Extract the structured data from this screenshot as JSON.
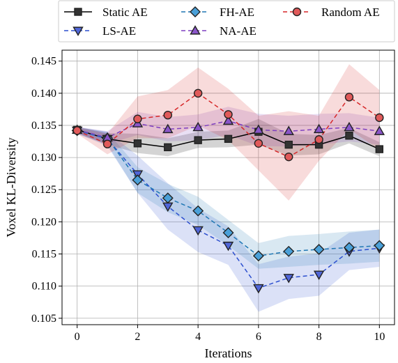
{
  "chart_data": {
    "type": "line",
    "title": "",
    "xlabel": "Iterations",
    "ylabel": "Voxel KL-Diversity",
    "xlim": [
      -0.5,
      10.5
    ],
    "ylim": [
      0.104,
      0.1467
    ],
    "xticks": [
      0,
      2,
      4,
      6,
      8,
      10
    ],
    "yticks": [
      0.105,
      0.11,
      0.115,
      0.12,
      0.125,
      0.13,
      0.135,
      0.14,
      0.145
    ],
    "ytick_labels": [
      "0.105",
      "0.110",
      "0.115",
      "0.120",
      "0.125",
      "0.130",
      "0.135",
      "0.140",
      "0.145"
    ],
    "grid": true,
    "legend_position": "top",
    "x": [
      0,
      1,
      2,
      3,
      4,
      5,
      6,
      7,
      8,
      9,
      10
    ],
    "series": [
      {
        "name": "Static AE",
        "color": "#000000",
        "marker": "square",
        "linestyle": "solid",
        "values": [
          0.1343,
          0.1329,
          0.1322,
          0.1316,
          0.1327,
          0.1329,
          0.134,
          0.132,
          0.132,
          0.1334,
          0.1313
        ],
        "lower": [
          0.1338,
          0.132,
          0.1307,
          0.1302,
          0.1315,
          0.1316,
          0.132,
          0.1303,
          0.1305,
          0.1322,
          0.1302
        ],
        "upper": [
          0.1348,
          0.1338,
          0.1337,
          0.133,
          0.134,
          0.1342,
          0.136,
          0.1337,
          0.1335,
          0.1346,
          0.1324
        ]
      },
      {
        "name": "LS-AE",
        "color": "#2c4fcf",
        "marker": "triangle-down",
        "linestyle": "dashed",
        "values": [
          0.1342,
          0.1329,
          0.1274,
          0.1224,
          0.1187,
          0.1163,
          0.1097,
          0.1113,
          0.1118,
          0.1154,
          0.1159
        ],
        "lower": [
          0.1337,
          0.1318,
          0.1245,
          0.1188,
          0.1153,
          0.1133,
          0.106,
          0.108,
          0.1085,
          0.1125,
          0.113
        ],
        "upper": [
          0.1347,
          0.134,
          0.1303,
          0.126,
          0.1221,
          0.1193,
          0.1134,
          0.1146,
          0.1151,
          0.1183,
          0.1188
        ]
      },
      {
        "name": "FH-AE",
        "color": "#1f77b4",
        "marker": "diamond",
        "linestyle": "dashed",
        "values": [
          0.1342,
          0.133,
          0.1265,
          0.1237,
          0.1217,
          0.1183,
          0.1147,
          0.1154,
          0.1157,
          0.116,
          0.1163
        ],
        "lower": [
          0.1337,
          0.132,
          0.1245,
          0.1215,
          0.1195,
          0.1163,
          0.1127,
          0.113,
          0.1133,
          0.1135,
          0.1138
        ],
        "upper": [
          0.1347,
          0.134,
          0.1285,
          0.1259,
          0.1239,
          0.1203,
          0.1167,
          0.1178,
          0.1181,
          0.1185,
          0.1188
        ]
      },
      {
        "name": "NA-AE",
        "color": "#7e3fc0",
        "marker": "triangle-up",
        "linestyle": "dashed",
        "values": [
          0.1343,
          0.1331,
          0.1353,
          0.1344,
          0.1347,
          0.1357,
          0.1343,
          0.1341,
          0.1344,
          0.1347,
          0.1341
        ],
        "lower": [
          0.1338,
          0.1321,
          0.1335,
          0.1325,
          0.1327,
          0.1335,
          0.1318,
          0.1317,
          0.132,
          0.1325,
          0.132
        ],
        "upper": [
          0.1348,
          0.1341,
          0.1371,
          0.1363,
          0.1367,
          0.1379,
          0.1368,
          0.1365,
          0.1368,
          0.1369,
          0.1362
        ]
      },
      {
        "name": "Random AE",
        "color": "#d62728",
        "marker": "circle",
        "linestyle": "dashed",
        "values": [
          0.1342,
          0.1321,
          0.136,
          0.1366,
          0.14,
          0.1367,
          0.1322,
          0.1301,
          0.1328,
          0.1394,
          0.1362
        ],
        "lower": [
          0.1337,
          0.1305,
          0.133,
          0.133,
          0.135,
          0.1327,
          0.128,
          0.1233,
          0.1295,
          0.1344,
          0.1312
        ],
        "upper": [
          0.1347,
          0.1337,
          0.1395,
          0.1405,
          0.144,
          0.1407,
          0.1365,
          0.1372,
          0.1365,
          0.1445,
          0.1405
        ]
      }
    ]
  }
}
